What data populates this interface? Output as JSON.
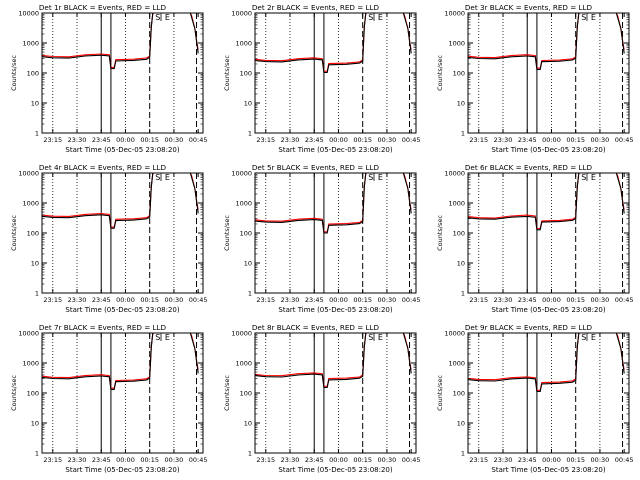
{
  "colors": {
    "events": "#000000",
    "lld": "#ff0000",
    "axis": "#000000",
    "background": "#ffffff"
  },
  "common": {
    "ylabel": "Counts/sec",
    "xlabel": "Start Time (05-Dec-05 23:08:20)",
    "x_tick_labels": [
      "23:15",
      "23:30",
      "23:45",
      "00:00",
      "00:15",
      "00:30",
      "00:45"
    ],
    "y_tick_labels": [
      "1",
      "10",
      "100",
      "1000",
      "10000"
    ],
    "markers": [
      "S",
      "E"
    ]
  },
  "chart_data": [
    {
      "type": "line",
      "title": "Det 1r BLACK = Events, RED = LLD",
      "xlabel": "Start Time (05-Dec-05 23:08:20)",
      "ylabel": "Counts/sec",
      "ylog": true,
      "ylim": [
        1,
        10000
      ],
      "xlim": [
        "23:08",
        "00:48"
      ],
      "x_ticks": [
        "23:15",
        "23:30",
        "23:45",
        "00:00",
        "00:15",
        "00:30",
        "00:45"
      ],
      "level": 350
    },
    {
      "type": "line",
      "title": "Det 2r BLACK = Events, RED = LLD",
      "xlabel": "Start Time (05-Dec-05 23:08:20)",
      "ylabel": "Counts/sec",
      "ylog": true,
      "ylim": [
        1,
        10000
      ],
      "xlim": [
        "23:08",
        "00:48"
      ],
      "x_ticks": [
        "23:15",
        "23:30",
        "23:45",
        "00:00",
        "00:15",
        "00:30",
        "00:45"
      ],
      "level": 260
    },
    {
      "type": "line",
      "title": "Det 3r BLACK = Events, RED = LLD",
      "xlabel": "Start Time (05-Dec-05 23:08:20)",
      "ylabel": "Counts/sec",
      "ylog": true,
      "ylim": [
        1,
        10000
      ],
      "xlim": [
        "23:08",
        "00:48"
      ],
      "x_ticks": [
        "23:15",
        "23:30",
        "23:45",
        "00:00",
        "00:15",
        "00:30",
        "00:45"
      ],
      "level": 330
    },
    {
      "type": "line",
      "title": "Det 4r BLACK = Events, RED = LLD",
      "xlabel": "Start Time (05-Dec-05 23:08:20)",
      "ylabel": "Counts/sec",
      "ylog": true,
      "ylim": [
        1,
        10000
      ],
      "xlim": [
        "23:08",
        "00:48"
      ],
      "x_ticks": [
        "23:15",
        "23:30",
        "23:45",
        "00:00",
        "00:15",
        "00:30",
        "00:45"
      ],
      "level": 360
    },
    {
      "type": "line",
      "title": "Det 5r BLACK = Events, RED = LLD",
      "xlabel": "Start Time (05-Dec-05 23:08:20)",
      "ylabel": "Counts/sec",
      "ylog": true,
      "ylim": [
        1,
        10000
      ],
      "xlim": [
        "23:08",
        "00:48"
      ],
      "x_ticks": [
        "23:15",
        "23:30",
        "23:45",
        "00:00",
        "00:15",
        "00:30",
        "00:45"
      ],
      "level": 250
    },
    {
      "type": "line",
      "title": "Det 6r BLACK = Events, RED = LLD",
      "xlabel": "Start Time (05-Dec-05 23:08:20)",
      "ylabel": "Counts/sec",
      "ylog": true,
      "ylim": [
        1,
        10000
      ],
      "xlim": [
        "23:08",
        "00:48"
      ],
      "x_ticks": [
        "23:15",
        "23:30",
        "23:45",
        "00:00",
        "00:15",
        "00:30",
        "00:45"
      ],
      "level": 320
    },
    {
      "type": "line",
      "title": "Det 7r BLACK = Events, RED = LLD",
      "xlabel": "Start Time (05-Dec-05 23:08:20)",
      "ylabel": "Counts/sec",
      "ylog": true,
      "ylim": [
        1,
        10000
      ],
      "xlim": [
        "23:08",
        "00:48"
      ],
      "x_ticks": [
        "23:15",
        "23:30",
        "23:45",
        "00:00",
        "00:15",
        "00:30",
        "00:45"
      ],
      "level": 330
    },
    {
      "type": "line",
      "title": "Det 8r BLACK = Events, RED = LLD",
      "xlabel": "Start Time (05-Dec-05 23:08:20)",
      "ylabel": "Counts/sec",
      "ylog": true,
      "ylim": [
        1,
        10000
      ],
      "xlim": [
        "23:08",
        "00:48"
      ],
      "x_ticks": [
        "23:15",
        "23:30",
        "23:45",
        "00:00",
        "00:15",
        "00:30",
        "00:45"
      ],
      "level": 380
    },
    {
      "type": "line",
      "title": "Det 9r BLACK = Events, RED = LLD",
      "xlabel": "Start Time (05-Dec-05 23:08:20)",
      "ylabel": "Counts/sec",
      "ylog": true,
      "ylim": [
        1,
        10000
      ],
      "xlim": [
        "23:08",
        "00:48"
      ],
      "x_ticks": [
        "23:15",
        "23:30",
        "23:45",
        "00:00",
        "00:15",
        "00:30",
        "00:45"
      ],
      "level": 280
    }
  ]
}
